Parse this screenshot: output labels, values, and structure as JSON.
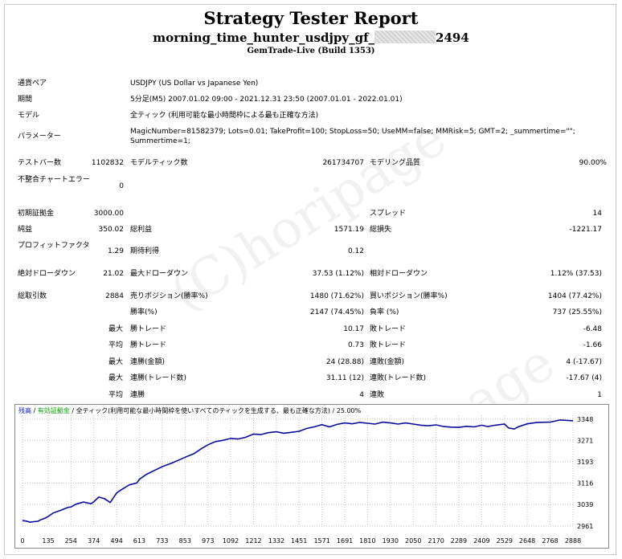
{
  "header": {
    "title": "Strategy Tester Report",
    "ea_prefix": "morning_time_hunter_usdjpy_gf_",
    "ea_suffix": "2494",
    "build": "GemTrade-Live (Build 1353)"
  },
  "info": {
    "symbol_label": "通貨ペア",
    "symbol_value": "USDJPY (US Dollar vs Japanese Yen)",
    "period_label": "期間",
    "period_value": "5分足(M5) 2007.01.02 09:00 - 2021.12.31 23:50 (2007.01.01 - 2022.01.01)",
    "model_label": "モデル",
    "model_value": "全ティック (利用可能な最小時間枠による最も正確な方法)",
    "params_label": "パラメーター",
    "params_value": "MagicNumber=81582379; Lots=0.01; TakeProfit=100; StopLoss=50; UseMM=false; MMRisk=5; GMT=2; _summertime=\"\"; Summertime=1;"
  },
  "stats": {
    "bars_label": "テストバー数",
    "bars_value": "1102832",
    "ticks_label": "モデルティック数",
    "ticks_value": "261734707",
    "quality_label": "モデリング品質",
    "quality_value": "90.00%",
    "mismatch_label": "不整合チャートエラー",
    "mismatch_value": "0",
    "deposit_label": "初期証拠金",
    "deposit_value": "3000.00",
    "spread_label": "スプレッド",
    "spread_value": "14",
    "net_label": "純益",
    "net_value": "350.02",
    "gross_profit_label": "総利益",
    "gross_profit_value": "1571.19",
    "gross_loss_label": "総損失",
    "gross_loss_value": "-1221.17",
    "pf_label": "プロフィットファクタ",
    "pf_value": "1.29",
    "exp_label": "期待利得",
    "exp_value": "0.12",
    "abs_dd_label": "絶対ドローダウン",
    "abs_dd_value": "21.02",
    "max_dd_label": "最大ドローダウン",
    "max_dd_value": "37.53 (1.12%)",
    "rel_dd_label": "相対ドローダウン",
    "rel_dd_value": "1.12% (37.53)",
    "total_label": "総取引数",
    "total_value": "2884",
    "short_label": "売りポジション(勝率%)",
    "short_value": "1480 (71.62%)",
    "long_label": "買いポジション(勝率%)",
    "long_value": "1404 (77.42%)",
    "win_pct_label": "勝率(%)",
    "win_pct_value": "2147 (74.45%)",
    "loss_pct_label": "負率 (%)",
    "loss_pct_value": "737 (25.55%)",
    "max_label": "最大",
    "avg_label": "平均",
    "win_trade_label": "勝トレード",
    "loss_trade_label": "敗トレード",
    "max_win": "10.17",
    "max_loss": "-6.48",
    "avg_win": "0.73",
    "avg_loss": "-1.66",
    "consec_win_money_label": "連勝(金額)",
    "consec_win_money": "24 (28.88)",
    "consec_loss_money_label": "連敗(金額)",
    "consec_loss_money": "4 (-17.67)",
    "consec_win_trades_label": "連勝(トレード数)",
    "consec_win_trades": "31.11 (12)",
    "consec_loss_trades_label": "連敗(トレード数)",
    "consec_loss_trades": "-17.67 (4)",
    "avg_consec_win_label": "連勝",
    "avg_consec_win": "4",
    "avg_consec_loss_label": "連敗",
    "avg_consec_loss": "1"
  },
  "watermark": "(C)horipage",
  "chart_data": {
    "type": "line",
    "legend_balance": "残高",
    "legend_sep1": " / ",
    "legend_volume": "有効証拠金",
    "legend_rest": " / 全ティック(利用可能な最小時間枠を使いすべてのティックを生成する、最も正確な方法) / 25.00%",
    "x_ticks": [
      "0",
      "135",
      "254",
      "374",
      "494",
      "613",
      "733",
      "853",
      "973",
      "1092",
      "1212",
      "1332",
      "1451",
      "1571",
      "1691",
      "1810",
      "1930",
      "2050",
      "2170",
      "2289",
      "2409",
      "2529",
      "2648",
      "2768",
      "2888"
    ],
    "y_ticks": [
      "3348",
      "3271",
      "3193",
      "3116",
      "3039",
      "2961"
    ],
    "ylim": [
      2961,
      3362
    ],
    "xlim": [
      0,
      2888
    ],
    "series": [
      {
        "color": "#0a0aa0",
        "x": [
          0,
          20,
          40,
          60,
          80,
          100,
          120,
          135,
          160,
          200,
          240,
          254,
          280,
          320,
          360,
          374,
          400,
          430,
          460,
          494,
          520,
          560,
          600,
          613,
          650,
          700,
          733,
          780,
          820,
          853,
          900,
          940,
          973,
          1010,
          1050,
          1092,
          1130,
          1170,
          1212,
          1250,
          1290,
          1332,
          1370,
          1410,
          1451,
          1490,
          1530,
          1571,
          1610,
          1650,
          1691,
          1730,
          1770,
          1810,
          1850,
          1890,
          1930,
          1970,
          2010,
          2050,
          2090,
          2130,
          2170,
          2210,
          2250,
          2289,
          2330,
          2370,
          2409,
          2440,
          2480,
          2529,
          2550,
          2580,
          2600,
          2648,
          2700,
          2768,
          2820,
          2860,
          2888
        ],
        "y": [
          2981,
          2979,
          2975,
          2977,
          2978,
          2985,
          2990,
          2996,
          3008,
          3018,
          3029,
          3030,
          3040,
          3048,
          3042,
          3049,
          3066,
          3060,
          3046,
          3081,
          3093,
          3110,
          3117,
          3130,
          3148,
          3165,
          3176,
          3188,
          3200,
          3210,
          3223,
          3242,
          3255,
          3266,
          3271,
          3278,
          3276,
          3282,
          3294,
          3292,
          3299,
          3302,
          3297,
          3300,
          3304,
          3314,
          3320,
          3328,
          3320,
          3329,
          3334,
          3331,
          3336,
          3333,
          3330,
          3337,
          3334,
          3330,
          3334,
          3330,
          3326,
          3324,
          3327,
          3321,
          3319,
          3318,
          3322,
          3320,
          3326,
          3321,
          3326,
          3330,
          3316,
          3312,
          3320,
          3331,
          3336,
          3337,
          3345,
          3343,
          3342
        ]
      }
    ]
  }
}
